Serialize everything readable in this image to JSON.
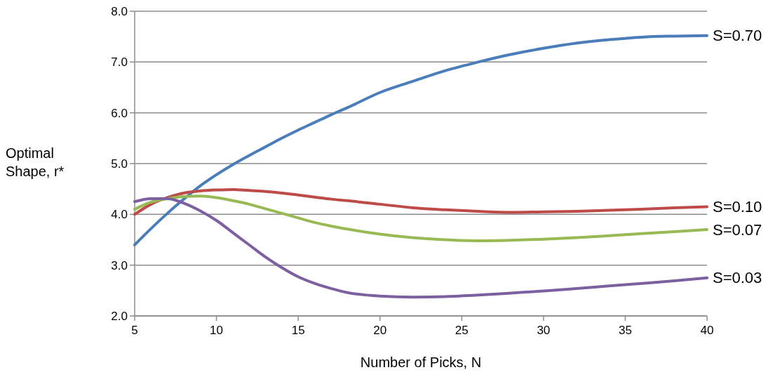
{
  "chart_data": {
    "type": "line",
    "xlabel": "Number of Picks, N",
    "ylabel": "Optimal Shape, r*",
    "x": [
      5,
      6,
      7,
      8,
      9,
      10,
      11,
      12,
      13,
      14,
      15,
      16,
      17,
      18,
      20,
      22,
      24,
      26,
      28,
      30,
      32,
      34,
      36,
      38,
      40
    ],
    "xlim": [
      5,
      40
    ],
    "xticks": [
      5,
      10,
      15,
      20,
      25,
      30,
      35,
      40
    ],
    "ylim": [
      2,
      8
    ],
    "yticks": [
      {
        "value": 2,
        "label": "2.0"
      },
      {
        "value": 3,
        "label": "3.0"
      },
      {
        "value": 4,
        "label": "4.0"
      },
      {
        "value": 5,
        "label": "5.0"
      },
      {
        "value": 6,
        "label": "6.0"
      },
      {
        "value": 7,
        "label": "7.0"
      },
      {
        "value": 8,
        "label": "8.0"
      }
    ],
    "grid": "y",
    "legend": false,
    "marker": "none",
    "line_style": "solid",
    "series": [
      {
        "name": "S=0.70",
        "color": "#4a7ebb",
        "values": [
          3.4,
          3.72,
          4.02,
          4.3,
          4.56,
          4.78,
          4.98,
          5.16,
          5.33,
          5.5,
          5.66,
          5.81,
          5.96,
          6.1,
          6.4,
          6.62,
          6.83,
          7.0,
          7.15,
          7.27,
          7.37,
          7.44,
          7.49,
          7.51,
          7.52
        ]
      },
      {
        "name": "S=0.10",
        "color": "#be4b48",
        "values": [
          4.0,
          4.2,
          4.33,
          4.42,
          4.46,
          4.48,
          4.49,
          4.47,
          4.45,
          4.42,
          4.38,
          4.34,
          4.3,
          4.27,
          4.2,
          4.13,
          4.09,
          4.06,
          4.04,
          4.05,
          4.06,
          4.08,
          4.1,
          4.13,
          4.15
        ]
      },
      {
        "name": "S=0.07",
        "color": "#98b954",
        "values": [
          4.1,
          4.24,
          4.31,
          4.35,
          4.36,
          4.33,
          4.27,
          4.2,
          4.11,
          4.02,
          3.93,
          3.84,
          3.77,
          3.71,
          3.61,
          3.54,
          3.5,
          3.48,
          3.49,
          3.51,
          3.54,
          3.58,
          3.62,
          3.66,
          3.7
        ]
      },
      {
        "name": "S=0.03",
        "color": "#7d60a0",
        "values": [
          4.25,
          4.31,
          4.31,
          4.22,
          4.07,
          3.88,
          3.64,
          3.4,
          3.16,
          2.95,
          2.77,
          2.64,
          2.54,
          2.46,
          2.39,
          2.37,
          2.38,
          2.41,
          2.45,
          2.49,
          2.54,
          2.59,
          2.64,
          2.69,
          2.75
        ]
      }
    ]
  }
}
